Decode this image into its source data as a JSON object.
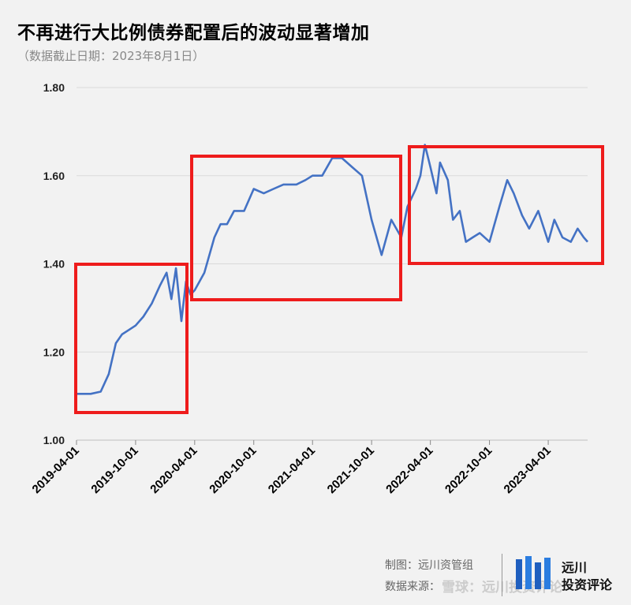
{
  "chart_data": {
    "type": "line",
    "title": "不再进行大比例债券配置后的波动显著增加",
    "subtitle": "（数据截止日期：2023年8月1日）",
    "xlabel": "",
    "ylabel": "",
    "ylim": [
      1.0,
      1.8
    ],
    "yticks": [
      "1.00",
      "1.20",
      "1.40",
      "1.60",
      "1.80"
    ],
    "xticks": [
      "2019-04-01",
      "2019-10-01",
      "2020-04-01",
      "2020-10-01",
      "2021-04-01",
      "2021-10-01",
      "2022-04-01",
      "2022-10-01",
      "2023-04-01"
    ],
    "grid": "horizontal",
    "line_color": "#4472c4",
    "highlight_color": "#ee1c1c",
    "series": [
      {
        "x": [
          "2019-04-01",
          "2019-05-15",
          "2019-06-15",
          "2019-07-10",
          "2019-08-01",
          "2019-08-20",
          "2019-09-10",
          "2019-10-01",
          "2019-10-25",
          "2019-11-20",
          "2019-12-15",
          "2020-01-05",
          "2020-01-20",
          "2020-02-03",
          "2020-02-20",
          "2020-03-05",
          "2020-03-19",
          "2020-04-01",
          "2020-05-01",
          "2020-06-01",
          "2020-06-20",
          "2020-07-10",
          "2020-08-01",
          "2020-09-01",
          "2020-10-01",
          "2020-11-01",
          "2020-12-01",
          "2021-01-01",
          "2021-02-10",
          "2021-03-10",
          "2021-04-01",
          "2021-05-01",
          "2021-06-01",
          "2021-07-01",
          "2021-08-01",
          "2021-09-01",
          "2021-10-01",
          "2021-11-01",
          "2021-12-01",
          "2022-01-01",
          "2022-01-20",
          "2022-02-15",
          "2022-03-01",
          "2022-03-15",
          "2022-04-01",
          "2022-04-20",
          "2022-05-01",
          "2022-05-25",
          "2022-06-10",
          "2022-07-01",
          "2022-07-20",
          "2022-08-10",
          "2022-09-01",
          "2022-10-01",
          "2022-11-01",
          "2022-11-25",
          "2022-12-15",
          "2023-01-10",
          "2023-02-01",
          "2023-03-01",
          "2023-04-01",
          "2023-04-20",
          "2023-05-15",
          "2023-06-10",
          "2023-07-01",
          "2023-07-20",
          "2023-08-01"
        ],
        "values": [
          1.105,
          1.105,
          1.11,
          1.15,
          1.22,
          1.24,
          1.25,
          1.26,
          1.28,
          1.31,
          1.35,
          1.38,
          1.32,
          1.39,
          1.27,
          1.36,
          1.33,
          1.34,
          1.38,
          1.46,
          1.49,
          1.49,
          1.52,
          1.52,
          1.57,
          1.56,
          1.57,
          1.58,
          1.58,
          1.59,
          1.6,
          1.6,
          1.64,
          1.64,
          1.62,
          1.6,
          1.5,
          1.42,
          1.5,
          1.46,
          1.53,
          1.57,
          1.6,
          1.67,
          1.62,
          1.56,
          1.63,
          1.59,
          1.5,
          1.52,
          1.45,
          1.46,
          1.47,
          1.45,
          1.53,
          1.59,
          1.56,
          1.51,
          1.48,
          1.52,
          1.45,
          1.5,
          1.46,
          1.45,
          1.48,
          1.46,
          1.45
        ]
      }
    ]
  },
  "footer": {
    "line1": "制图：远川资管组",
    "line2": "数据来源：",
    "watermark": "雪球：远川投资评论",
    "brand1": "远川",
    "brand2": "投资评论"
  }
}
